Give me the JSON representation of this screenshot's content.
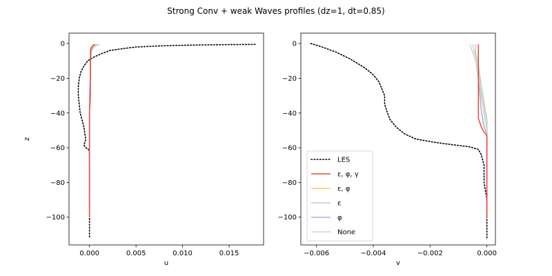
{
  "title": "Strong Conv + weak Waves profiles (dz=1, dt=0.85)",
  "chart_data": [
    {
      "type": "line",
      "xlabel": "u",
      "ylabel": "z",
      "xlim": [
        -0.0022,
        0.0187
      ],
      "ylim": [
        -116,
        6
      ],
      "xticks": [
        0.0,
        0.005,
        0.01,
        0.015
      ],
      "xtick_labels": [
        "0.000",
        "0.005",
        "0.010",
        "0.015"
      ],
      "yticks": [
        0,
        -20,
        -40,
        -60,
        -80,
        -100
      ],
      "ytick_labels": [
        "0",
        "−20",
        "−40",
        "−60",
        "−80",
        "−100"
      ],
      "series": [
        {
          "name": "LES",
          "color": "#000000",
          "style": "dotted",
          "points": [
            [
              0.0178,
              -0.5
            ],
            [
              0.015,
              -0.6
            ],
            [
              0.012,
              -0.8
            ],
            [
              0.009,
              -1.1
            ],
            [
              0.007,
              -1.5
            ],
            [
              0.005,
              -2
            ],
            [
              0.0035,
              -3
            ],
            [
              0.0022,
              -4
            ],
            [
              0.0012,
              -6
            ],
            [
              0.0004,
              -8
            ],
            [
              -0.0002,
              -10
            ],
            [
              -0.0006,
              -13
            ],
            [
              -0.0009,
              -16
            ],
            [
              -0.0011,
              -20
            ],
            [
              -0.0012,
              -25
            ],
            [
              -0.0012,
              -30
            ],
            [
              -0.0011,
              -35
            ],
            [
              -0.001,
              -40
            ],
            [
              -0.0008,
              -44
            ],
            [
              -0.0006,
              -48
            ],
            [
              -0.0005,
              -52
            ],
            [
              -0.0004,
              -55
            ],
            [
              -0.0005,
              -57
            ],
            [
              -0.0006,
              -58.5
            ],
            [
              -0.0004,
              -60
            ],
            [
              -0.0001,
              -61
            ],
            [
              0.0,
              -63
            ],
            [
              0.0,
              -70
            ],
            [
              0.0,
              -80
            ],
            [
              0.0,
              -90
            ],
            [
              0.0,
              -100
            ],
            [
              0.0,
              -112
            ]
          ]
        },
        {
          "name": "None",
          "color": "#d3d3d3",
          "style": "solid",
          "points": [
            [
              0.0011,
              -0.5
            ],
            [
              0.0008,
              -1
            ],
            [
              0.0005,
              -2
            ],
            [
              0.0003,
              -3
            ],
            [
              0.0002,
              -5
            ],
            [
              0.0001,
              -10
            ],
            [
              0.0001,
              -20
            ],
            [
              0.0,
              -30
            ],
            [
              0.0,
              -45
            ],
            [
              0.0,
              -60
            ],
            [
              0.0,
              -100
            ]
          ]
        },
        {
          "name": "ε",
          "color": "#b2d8b2",
          "style": "solid",
          "points": [
            [
              0.0009,
              -0.5
            ],
            [
              0.0006,
              -1
            ],
            [
              0.0004,
              -2
            ],
            [
              0.0003,
              -3
            ],
            [
              0.0002,
              -5
            ],
            [
              0.0001,
              -10
            ],
            [
              0.0001,
              -20
            ],
            [
              0.0,
              -30
            ],
            [
              0.0,
              -45
            ],
            [
              0.0,
              -60
            ],
            [
              0.0,
              -100
            ]
          ]
        },
        {
          "name": "ε, φ",
          "color": "#ffc55c",
          "style": "solid",
          "points": [
            [
              0.0006,
              -0.5
            ],
            [
              0.0004,
              -1
            ],
            [
              0.0003,
              -2
            ],
            [
              0.0002,
              -4
            ],
            [
              0.0001,
              -8
            ],
            [
              0.0001,
              -20
            ],
            [
              0.0,
              -30
            ],
            [
              0.0,
              -50
            ],
            [
              0.0,
              -60
            ],
            [
              0.0,
              -100
            ]
          ]
        },
        {
          "name": "φ",
          "color": "#b8a8e0",
          "style": "solid",
          "points": [
            [
              0.0006,
              -0.5
            ],
            [
              0.0004,
              -1
            ],
            [
              0.0003,
              -2
            ],
            [
              0.0002,
              -4
            ],
            [
              0.0001,
              -8
            ],
            [
              0.0001,
              -20
            ],
            [
              0.0,
              -30
            ],
            [
              0.0,
              -50
            ],
            [
              0.0,
              -60
            ],
            [
              0.0,
              -100
            ]
          ]
        },
        {
          "name": "ε, φ, γ",
          "color": "#e8483a",
          "style": "solid",
          "points": [
            [
              0.0006,
              -0.5
            ],
            [
              0.0004,
              -1
            ],
            [
              0.0002,
              -2
            ],
            [
              0.0001,
              -4
            ],
            [
              0.0001,
              -10
            ],
            [
              0.0001,
              -20
            ],
            [
              0.0001,
              -30
            ],
            [
              0.0,
              -40
            ],
            [
              0.0,
              -50
            ],
            [
              0.0,
              -60
            ],
            [
              0.0,
              -100
            ]
          ]
        }
      ]
    },
    {
      "type": "line",
      "xlabel": "v",
      "ylabel": "",
      "xlim": [
        -0.00655,
        0.0003
      ],
      "ylim": [
        -116,
        6
      ],
      "xticks": [
        -0.006,
        -0.004,
        -0.002,
        0.0
      ],
      "xtick_labels": [
        "−0.006",
        "−0.004",
        "−0.002",
        "0.000"
      ],
      "yticks": [
        0,
        -20,
        -40,
        -60,
        -80,
        -100
      ],
      "ytick_labels": [
        "0",
        "−20",
        "−40",
        "−60",
        "−80",
        "−100"
      ],
      "legend": {
        "placement": "lower-left",
        "entries": [
          "LES",
          "ε, φ, γ",
          "ε, φ",
          "ε",
          "φ",
          "None"
        ]
      },
      "series": [
        {
          "name": "LES",
          "color": "#000000",
          "style": "dotted",
          "points": [
            [
              -0.0062,
              0
            ],
            [
              -0.0058,
              -2
            ],
            [
              -0.0053,
              -5
            ],
            [
              -0.0048,
              -9
            ],
            [
              -0.0043,
              -14
            ],
            [
              -0.004,
              -18
            ],
            [
              -0.0038,
              -22
            ],
            [
              -0.0037,
              -26
            ],
            [
              -0.0036,
              -30
            ],
            [
              -0.0036,
              -35
            ],
            [
              -0.0035,
              -40
            ],
            [
              -0.0034,
              -44
            ],
            [
              -0.0032,
              -48
            ],
            [
              -0.0029,
              -52
            ],
            [
              -0.0025,
              -55
            ],
            [
              -0.0018,
              -57
            ],
            [
              -0.0011,
              -58.5
            ],
            [
              -0.0006,
              -59.5
            ],
            [
              -0.0003,
              -61
            ],
            [
              -0.0002,
              -64
            ],
            [
              -0.0001,
              -70
            ],
            [
              -0.0001,
              -80
            ],
            [
              0.0,
              -90
            ],
            [
              0.0,
              -100
            ],
            [
              0.0,
              -112
            ]
          ]
        },
        {
          "name": "None",
          "color": "#d3d3d3",
          "style": "solid",
          "points": [
            [
              -0.0006,
              -0.5
            ],
            [
              -0.0005,
              -5
            ],
            [
              -0.0004,
              -10
            ],
            [
              -0.0003,
              -20
            ],
            [
              -0.0002,
              -30
            ],
            [
              -0.0001,
              -40
            ],
            [
              0.0,
              -50
            ],
            [
              0.0,
              -60
            ],
            [
              0.0,
              -100
            ]
          ]
        },
        {
          "name": "None",
          "color": "#d3d3d3",
          "style": "solid",
          "points": [
            [
              -0.0005,
              -0.5
            ],
            [
              -0.0004,
              -8
            ],
            [
              -0.0003,
              -16
            ],
            [
              -0.0002,
              -26
            ],
            [
              -0.0001,
              -36
            ],
            [
              0.0,
              -46
            ],
            [
              0.0,
              -60
            ],
            [
              0.0,
              -100
            ]
          ]
        },
        {
          "name": "ε",
          "color": "#b2d8b2",
          "style": "solid",
          "points": [
            [
              -0.0004,
              -0.5
            ],
            [
              -0.0004,
              -5
            ],
            [
              -0.0003,
              -12
            ],
            [
              -0.0002,
              -24
            ],
            [
              -0.0001,
              -34
            ],
            [
              0.0,
              -44
            ],
            [
              0.0,
              -60
            ],
            [
              0.0,
              -100
            ]
          ]
        },
        {
          "name": "ε, φ",
          "color": "#ffc55c",
          "style": "solid",
          "points": [
            [
              -0.0003,
              -0.5
            ],
            [
              -0.0003,
              -20
            ],
            [
              -0.0002,
              -38
            ],
            [
              -0.0001,
              -48
            ],
            [
              0.0,
              -52
            ],
            [
              0.0,
              -60
            ],
            [
              0.0,
              -100
            ]
          ]
        },
        {
          "name": "φ",
          "color": "#b8a8e0",
          "style": "solid",
          "points": [
            [
              -0.0003,
              -0.5
            ],
            [
              -0.0003,
              -20
            ],
            [
              -0.0002,
              -38
            ],
            [
              -0.0001,
              -48
            ],
            [
              0.0,
              -52
            ],
            [
              0.0,
              -60
            ],
            [
              0.0,
              -100
            ]
          ]
        },
        {
          "name": "ε, φ, γ",
          "color": "#e8483a",
          "style": "solid",
          "points": [
            [
              -0.0003,
              -0.5
            ],
            [
              -0.0003,
              -5
            ],
            [
              -0.0003,
              -15
            ],
            [
              -0.0003,
              -25
            ],
            [
              -0.0003,
              -35
            ],
            [
              -0.0003,
              -43
            ],
            [
              -0.0002,
              -48
            ],
            [
              -0.0001,
              -51
            ],
            [
              0.0,
              -53
            ],
            [
              0.0,
              -60
            ],
            [
              0.0,
              -100
            ]
          ]
        }
      ]
    }
  ]
}
